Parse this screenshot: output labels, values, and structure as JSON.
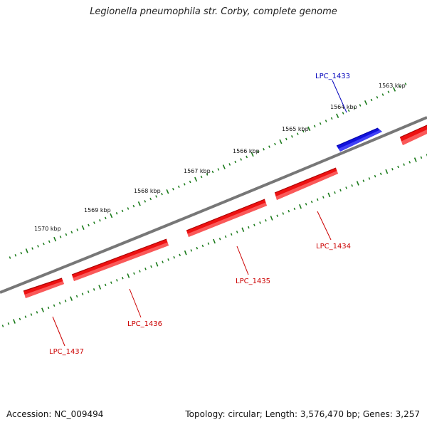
{
  "title": "Legionella pneumophila str. Corby, complete genome",
  "footer": {
    "accession": "Accession: NC_009494",
    "stats": "Topology: circular; Length: 3,576,470 bp; Genes: 3,257"
  },
  "colors": {
    "backbone": "#777777",
    "tick": "#1a7a1a",
    "reverse_gene": "#ee1111",
    "forward_gene": "#1111dd",
    "reverse_label": "#cc0000",
    "forward_label": "#0000bb"
  },
  "ticks": [
    {
      "label": "1563 kbp"
    },
    {
      "label": "1564 kbp"
    },
    {
      "label": "1565 kbp"
    },
    {
      "label": "1566 kbp"
    },
    {
      "label": "1567 kbp"
    },
    {
      "label": "1568 kbp"
    },
    {
      "label": "1569 kbp"
    },
    {
      "label": "1570 kbp"
    }
  ],
  "genes": [
    {
      "name": "LPC_1433",
      "strand": "forward"
    },
    {
      "name": "LPC_1434",
      "strand": "reverse"
    },
    {
      "name": "LPC_1435",
      "strand": "reverse"
    },
    {
      "name": "LPC_1436",
      "strand": "reverse"
    },
    {
      "name": "LPC_1437",
      "strand": "reverse"
    }
  ]
}
